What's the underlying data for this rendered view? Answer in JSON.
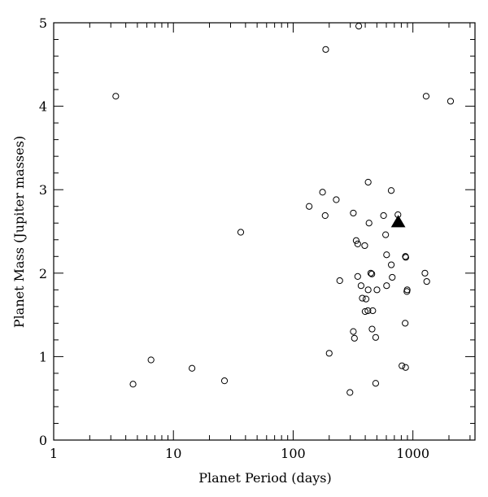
{
  "chart_data": {
    "type": "scatter",
    "xlabel": "Planet Period (days)",
    "ylabel": "Planet Mass (Jupiter masses)",
    "x_scale": "log",
    "xlim": [
      1,
      3300
    ],
    "ylim": [
      0,
      5
    ],
    "x_major_ticks": [
      1,
      10,
      100,
      1000
    ],
    "x_tick_labels": [
      "1",
      "10",
      "100",
      "1000"
    ],
    "y_major_ticks": [
      0,
      1,
      2,
      3,
      4,
      5
    ],
    "y_tick_labels": [
      "0",
      "1",
      "2",
      "3",
      "4",
      "5"
    ],
    "y_minor_step": 0.2,
    "grid": false,
    "series": [
      {
        "marker": "open-circle",
        "color": "#000000",
        "points": [
          [
            3.3,
            4.12
          ],
          [
            4.6,
            0.67
          ],
          [
            6.5,
            0.96
          ],
          [
            14.3,
            0.86
          ],
          [
            26.7,
            0.71
          ],
          [
            36.5,
            2.49
          ],
          [
            136,
            2.8
          ],
          [
            176,
            2.97
          ],
          [
            185,
            2.69
          ],
          [
            187,
            4.68
          ],
          [
            200,
            1.04
          ],
          [
            229,
            2.88
          ],
          [
            245,
            1.91
          ],
          [
            298,
            0.57
          ],
          [
            318,
            1.3
          ],
          [
            318,
            2.72
          ],
          [
            325,
            1.22
          ],
          [
            336,
            2.39
          ],
          [
            346,
            1.96
          ],
          [
            346,
            2.35
          ],
          [
            353,
            4.96
          ],
          [
            369,
            1.85
          ],
          [
            378,
            1.7
          ],
          [
            396,
            2.33
          ],
          [
            399,
            1.54
          ],
          [
            406,
            1.69
          ],
          [
            421,
            1.55
          ],
          [
            423,
            1.8
          ],
          [
            423,
            3.09
          ],
          [
            430,
            2.6
          ],
          [
            445,
            2.0
          ],
          [
            454,
            1.99
          ],
          [
            456,
            1.33
          ],
          [
            462,
            1.55
          ],
          [
            489,
            1.23
          ],
          [
            489,
            0.68
          ],
          [
            501,
            1.8
          ],
          [
            569,
            2.69
          ],
          [
            592,
            2.46
          ],
          [
            603,
            1.85
          ],
          [
            603,
            2.22
          ],
          [
            659,
            2.99
          ],
          [
            660,
            2.1
          ],
          [
            672,
            1.95
          ],
          [
            750,
            2.7
          ],
          [
            810,
            0.89
          ],
          [
            862,
            1.4
          ],
          [
            866,
            2.2
          ],
          [
            869,
            0.87
          ],
          [
            872,
            2.19
          ],
          [
            891,
            1.78
          ],
          [
            896,
            1.8
          ],
          [
            1260,
            2.0
          ],
          [
            1305,
            1.9
          ],
          [
            1290,
            4.12
          ],
          [
            2063,
            4.06
          ]
        ]
      },
      {
        "marker": "filled-triangle",
        "color": "#000000",
        "points": [
          [
            754,
            2.61
          ]
        ]
      }
    ]
  }
}
